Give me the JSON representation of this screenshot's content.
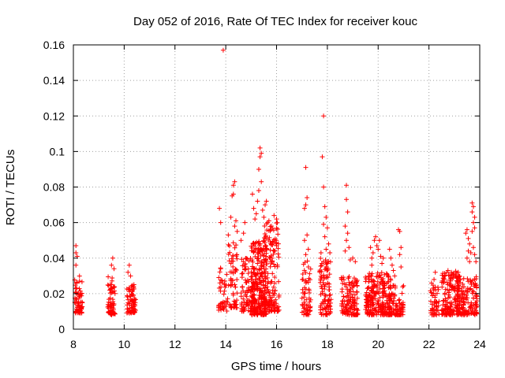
{
  "chart_data": {
    "type": "scatter",
    "title": "Day 052 of 2016, Rate Of TEC Index for receiver kouc",
    "xlabel": "GPS time / hours",
    "ylabel": "ROTI / TECUs",
    "xlim": [
      8,
      24
    ],
    "ylim": [
      0,
      0.16
    ],
    "xticks": [
      8,
      10,
      12,
      14,
      16,
      18,
      20,
      22,
      24
    ],
    "xtick_labels": [
      "8",
      "10",
      "12",
      "14",
      "16",
      "18",
      "20",
      "22",
      "24"
    ],
    "yticks": [
      0,
      0.02,
      0.04,
      0.06,
      0.08,
      0.1,
      0.12,
      0.14,
      0.16
    ],
    "ytick_labels": [
      "0",
      "0.02",
      "0.04",
      "0.06",
      "0.08",
      "0.1",
      "0.12",
      "0.14",
      "0.16"
    ],
    "grid": true,
    "marker": "+",
    "color": "#ff0000",
    "clusters": [
      {
        "x": [
          8.05,
          8.35
        ],
        "y": [
          0.009,
          0.03
        ],
        "n": 70
      },
      {
        "x": [
          9.35,
          9.65
        ],
        "y": [
          0.008,
          0.03
        ],
        "n": 60
      },
      {
        "x": [
          10.1,
          10.45
        ],
        "y": [
          0.009,
          0.026
        ],
        "n": 70
      },
      {
        "x": [
          13.7,
          14.1
        ],
        "y": [
          0.01,
          0.035
        ],
        "n": 40
      },
      {
        "x": [
          14.1,
          14.45
        ],
        "y": [
          0.012,
          0.05
        ],
        "n": 60
      },
      {
        "x": [
          14.6,
          15.1
        ],
        "y": [
          0.01,
          0.04
        ],
        "n": 90
      },
      {
        "x": [
          15.0,
          15.6
        ],
        "y": [
          0.008,
          0.05
        ],
        "n": 260
      },
      {
        "x": [
          15.5,
          16.1
        ],
        "y": [
          0.01,
          0.06
        ],
        "n": 160
      },
      {
        "x": [
          17.0,
          17.35
        ],
        "y": [
          0.008,
          0.04
        ],
        "n": 60
      },
      {
        "x": [
          17.7,
          18.15
        ],
        "y": [
          0.008,
          0.04
        ],
        "n": 100
      },
      {
        "x": [
          18.55,
          19.2
        ],
        "y": [
          0.008,
          0.03
        ],
        "n": 130
      },
      {
        "x": [
          19.5,
          20.5
        ],
        "y": [
          0.008,
          0.032
        ],
        "n": 250
      },
      {
        "x": [
          20.4,
          21.0
        ],
        "y": [
          0.008,
          0.025
        ],
        "n": 90
      },
      {
        "x": [
          22.05,
          22.4
        ],
        "y": [
          0.008,
          0.025
        ],
        "n": 50
      },
      {
        "x": [
          22.5,
          23.2
        ],
        "y": [
          0.008,
          0.033
        ],
        "n": 160
      },
      {
        "x": [
          23.1,
          23.9
        ],
        "y": [
          0.008,
          0.03
        ],
        "n": 150
      }
    ],
    "points": [
      {
        "x": 8.1,
        "y": 0.047
      },
      {
        "x": 8.1,
        "y": 0.043
      },
      {
        "x": 8.15,
        "y": 0.041
      },
      {
        "x": 8.1,
        "y": 0.036
      },
      {
        "x": 9.55,
        "y": 0.04
      },
      {
        "x": 9.5,
        "y": 0.036
      },
      {
        "x": 9.6,
        "y": 0.034
      },
      {
        "x": 10.2,
        "y": 0.036
      },
      {
        "x": 10.15,
        "y": 0.032
      },
      {
        "x": 10.25,
        "y": 0.03
      },
      {
        "x": 13.75,
        "y": 0.068
      },
      {
        "x": 13.8,
        "y": 0.06
      },
      {
        "x": 13.8,
        "y": 0.034
      },
      {
        "x": 13.9,
        "y": 0.157
      },
      {
        "x": 14.1,
        "y": 0.053
      },
      {
        "x": 14.2,
        "y": 0.063
      },
      {
        "x": 14.25,
        "y": 0.075
      },
      {
        "x": 14.3,
        "y": 0.076
      },
      {
        "x": 14.3,
        "y": 0.081
      },
      {
        "x": 14.35,
        "y": 0.083
      },
      {
        "x": 14.35,
        "y": 0.058
      },
      {
        "x": 14.4,
        "y": 0.061
      },
      {
        "x": 14.45,
        "y": 0.055
      },
      {
        "x": 14.6,
        "y": 0.05
      },
      {
        "x": 14.75,
        "y": 0.06
      },
      {
        "x": 14.7,
        "y": 0.054
      },
      {
        "x": 15.1,
        "y": 0.068
      },
      {
        "x": 15.05,
        "y": 0.076
      },
      {
        "x": 15.15,
        "y": 0.062
      },
      {
        "x": 15.2,
        "y": 0.065
      },
      {
        "x": 15.25,
        "y": 0.072
      },
      {
        "x": 15.3,
        "y": 0.078
      },
      {
        "x": 15.3,
        "y": 0.09
      },
      {
        "x": 15.35,
        "y": 0.097
      },
      {
        "x": 15.35,
        "y": 0.102
      },
      {
        "x": 15.4,
        "y": 0.099
      },
      {
        "x": 15.4,
        "y": 0.083
      },
      {
        "x": 15.45,
        "y": 0.067
      },
      {
        "x": 15.5,
        "y": 0.063
      },
      {
        "x": 15.55,
        "y": 0.07
      },
      {
        "x": 15.6,
        "y": 0.072
      },
      {
        "x": 15.65,
        "y": 0.06
      },
      {
        "x": 15.7,
        "y": 0.061
      },
      {
        "x": 15.8,
        "y": 0.058
      },
      {
        "x": 15.9,
        "y": 0.064
      },
      {
        "x": 16.0,
        "y": 0.062
      },
      {
        "x": 15.9,
        "y": 0.044
      },
      {
        "x": 16.0,
        "y": 0.047
      },
      {
        "x": 15.75,
        "y": 0.04
      },
      {
        "x": 17.15,
        "y": 0.091
      },
      {
        "x": 17.2,
        "y": 0.074
      },
      {
        "x": 17.15,
        "y": 0.07
      },
      {
        "x": 17.1,
        "y": 0.068
      },
      {
        "x": 17.2,
        "y": 0.053
      },
      {
        "x": 17.1,
        "y": 0.05
      },
      {
        "x": 17.25,
        "y": 0.045
      },
      {
        "x": 17.15,
        "y": 0.042
      },
      {
        "x": 17.85,
        "y": 0.12
      },
      {
        "x": 17.8,
        "y": 0.097
      },
      {
        "x": 17.85,
        "y": 0.08
      },
      {
        "x": 17.9,
        "y": 0.069
      },
      {
        "x": 17.95,
        "y": 0.063
      },
      {
        "x": 17.85,
        "y": 0.059
      },
      {
        "x": 18.0,
        "y": 0.057
      },
      {
        "x": 17.9,
        "y": 0.052
      },
      {
        "x": 18.05,
        "y": 0.048
      },
      {
        "x": 17.95,
        "y": 0.045
      },
      {
        "x": 18.1,
        "y": 0.043
      },
      {
        "x": 17.75,
        "y": 0.043
      },
      {
        "x": 18.75,
        "y": 0.081
      },
      {
        "x": 18.75,
        "y": 0.073
      },
      {
        "x": 18.8,
        "y": 0.066
      },
      {
        "x": 18.7,
        "y": 0.058
      },
      {
        "x": 18.8,
        "y": 0.054
      },
      {
        "x": 18.75,
        "y": 0.05
      },
      {
        "x": 18.85,
        "y": 0.046
      },
      {
        "x": 18.7,
        "y": 0.044
      },
      {
        "x": 18.9,
        "y": 0.039
      },
      {
        "x": 19.0,
        "y": 0.04
      },
      {
        "x": 19.1,
        "y": 0.038
      },
      {
        "x": 19.7,
        "y": 0.046
      },
      {
        "x": 19.75,
        "y": 0.04
      },
      {
        "x": 19.8,
        "y": 0.043
      },
      {
        "x": 19.85,
        "y": 0.05
      },
      {
        "x": 19.9,
        "y": 0.052
      },
      {
        "x": 19.95,
        "y": 0.047
      },
      {
        "x": 20.0,
        "y": 0.045
      },
      {
        "x": 20.05,
        "y": 0.05
      },
      {
        "x": 20.1,
        "y": 0.041
      },
      {
        "x": 20.15,
        "y": 0.037
      },
      {
        "x": 20.2,
        "y": 0.04
      },
      {
        "x": 19.75,
        "y": 0.036
      },
      {
        "x": 20.45,
        "y": 0.045
      },
      {
        "x": 20.5,
        "y": 0.04
      },
      {
        "x": 20.55,
        "y": 0.036
      },
      {
        "x": 20.6,
        "y": 0.033
      },
      {
        "x": 20.65,
        "y": 0.03
      },
      {
        "x": 20.8,
        "y": 0.056
      },
      {
        "x": 20.85,
        "y": 0.055
      },
      {
        "x": 20.9,
        "y": 0.046
      },
      {
        "x": 20.85,
        "y": 0.042
      },
      {
        "x": 20.9,
        "y": 0.035
      },
      {
        "x": 22.25,
        "y": 0.032
      },
      {
        "x": 22.2,
        "y": 0.028
      },
      {
        "x": 22.1,
        "y": 0.026
      },
      {
        "x": 22.75,
        "y": 0.033
      },
      {
        "x": 22.9,
        "y": 0.031
      },
      {
        "x": 23.05,
        "y": 0.03
      },
      {
        "x": 23.15,
        "y": 0.032
      },
      {
        "x": 23.2,
        "y": 0.028
      },
      {
        "x": 23.45,
        "y": 0.054
      },
      {
        "x": 23.5,
        "y": 0.056
      },
      {
        "x": 23.55,
        "y": 0.051
      },
      {
        "x": 23.6,
        "y": 0.048
      },
      {
        "x": 23.55,
        "y": 0.044
      },
      {
        "x": 23.5,
        "y": 0.04
      },
      {
        "x": 23.6,
        "y": 0.038
      },
      {
        "x": 23.65,
        "y": 0.043
      },
      {
        "x": 23.7,
        "y": 0.071
      },
      {
        "x": 23.75,
        "y": 0.069
      },
      {
        "x": 23.7,
        "y": 0.066
      },
      {
        "x": 23.8,
        "y": 0.063
      },
      {
        "x": 23.75,
        "y": 0.06
      },
      {
        "x": 23.8,
        "y": 0.057
      },
      {
        "x": 23.7,
        "y": 0.055
      },
      {
        "x": 23.75,
        "y": 0.046
      },
      {
        "x": 23.8,
        "y": 0.042
      },
      {
        "x": 23.85,
        "y": 0.038
      }
    ]
  }
}
